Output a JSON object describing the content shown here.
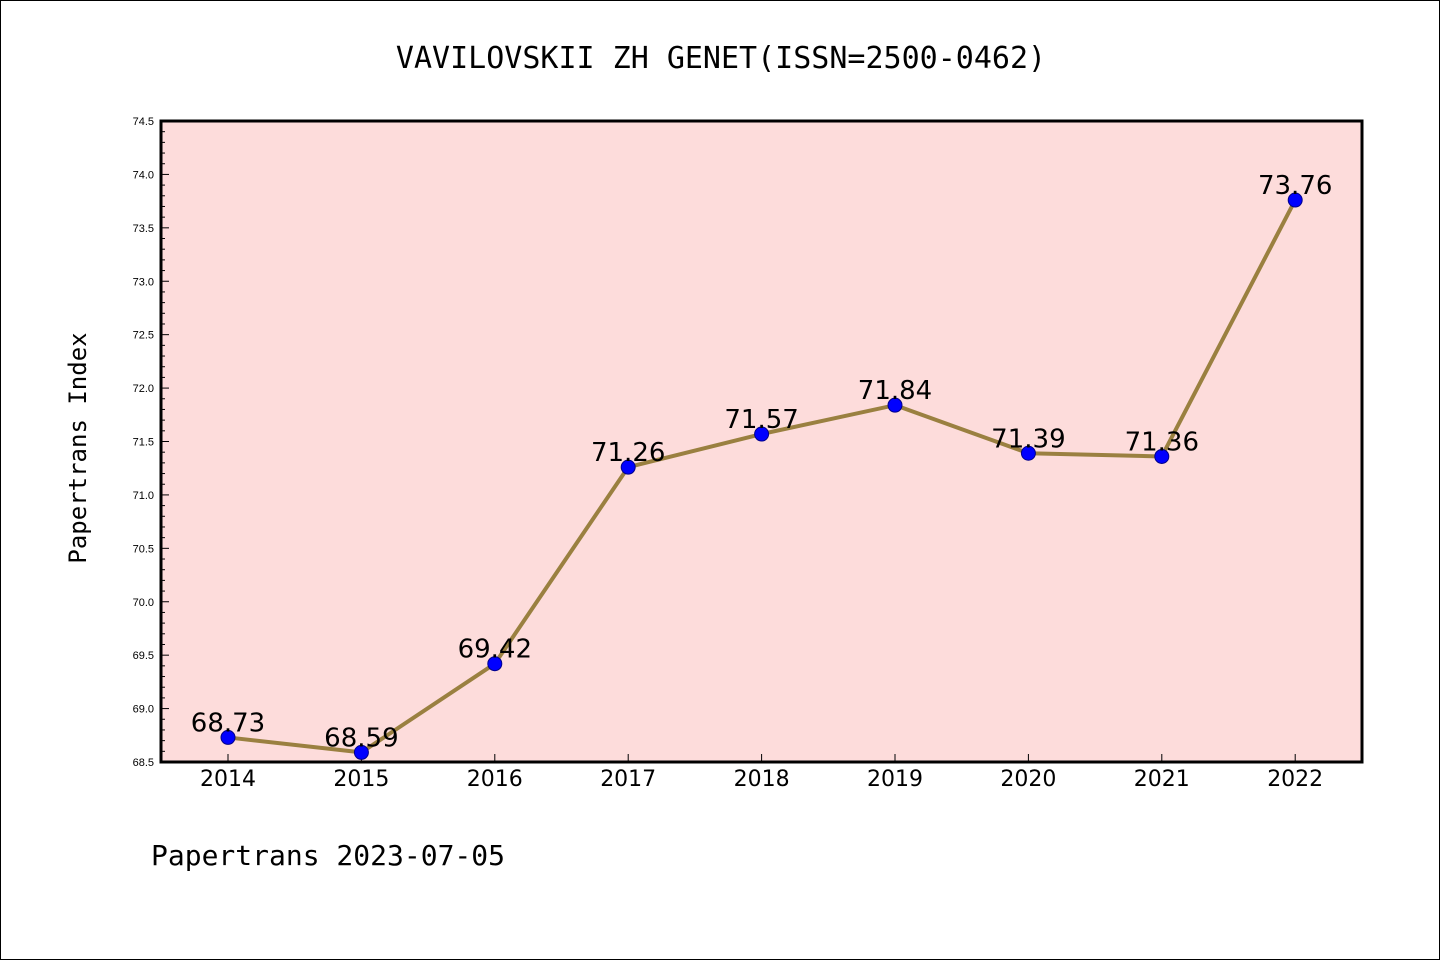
{
  "chart_data": {
    "type": "line",
    "title": "VAVILOVSKII ZH GENET(ISSN=2500-0462)",
    "xlabel": "",
    "ylabel": "Papertrans Index",
    "categories": [
      "2014",
      "2015",
      "2016",
      "2017",
      "2018",
      "2019",
      "2020",
      "2021",
      "2022"
    ],
    "values": [
      68.73,
      68.59,
      69.42,
      71.26,
      71.57,
      71.84,
      71.39,
      71.36,
      73.76
    ],
    "data_labels": [
      "68.73",
      "68.59",
      "69.42",
      "71.26",
      "71.57",
      "71.84",
      "71.39",
      "71.36",
      "73.76"
    ],
    "ylim": [
      68.5,
      74.5
    ],
    "yticks": [
      "68.5",
      "69.0",
      "69.5",
      "70.0",
      "70.5",
      "71.0",
      "71.5",
      "72.0",
      "72.5",
      "73.0",
      "73.5",
      "74.0",
      "74.5"
    ],
    "grid": false,
    "legend": "none",
    "colors": {
      "plot_background": "#fddcdb",
      "line": "#9a8040",
      "marker": "#0000ff"
    }
  },
  "footer": "Papertrans 2023-07-05"
}
